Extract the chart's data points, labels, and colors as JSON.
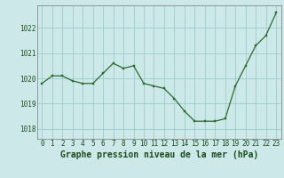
{
  "hours": [
    0,
    1,
    2,
    3,
    4,
    5,
    6,
    7,
    8,
    9,
    10,
    11,
    12,
    13,
    14,
    15,
    16,
    17,
    18,
    19,
    20,
    21,
    22,
    23
  ],
  "pressure": [
    1019.8,
    1020.1,
    1020.1,
    1019.9,
    1019.8,
    1019.8,
    1020.2,
    1020.6,
    1020.4,
    1020.5,
    1019.8,
    1019.7,
    1019.6,
    1019.2,
    1018.7,
    1018.3,
    1018.3,
    1018.3,
    1018.4,
    1019.7,
    1020.5,
    1021.3,
    1021.7,
    1022.6
  ],
  "line_color": "#2d6a2d",
  "marker_color": "#2d6a2d",
  "bg_color": "#cce8e8",
  "grid_color": "#99cccc",
  "title": "Graphe pression niveau de la mer (hPa)",
  "ylabel_values": [
    1018,
    1019,
    1020,
    1021,
    1022
  ],
  "ylim": [
    1017.6,
    1022.9
  ],
  "xlim": [
    -0.5,
    23.5
  ],
  "title_color": "#1a4d1a",
  "title_fontsize": 7.0,
  "tick_fontsize": 5.5,
  "border_color": "#888888"
}
